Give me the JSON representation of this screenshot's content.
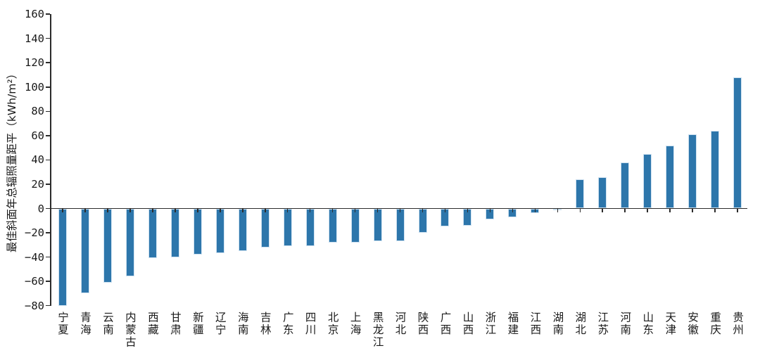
{
  "chart_data": {
    "type": "bar",
    "title": "",
    "xlabel": "",
    "ylabel": "最佳斜面年总辐照量距平（kWh/m²）",
    "ylim": [
      -80,
      160
    ],
    "yticks": [
      160,
      140,
      120,
      100,
      80,
      60,
      40,
      20,
      0,
      -20,
      -40,
      -60,
      -80
    ],
    "grid": false,
    "legend_position": "none",
    "categories": [
      "宁夏",
      "青海",
      "云南",
      "内蒙古",
      "西藏",
      "甘肃",
      "新疆",
      "辽宁",
      "海南",
      "吉林",
      "广东",
      "四川",
      "北京",
      "上海",
      "黑龙江",
      "河北",
      "陕西",
      "广西",
      "山西",
      "浙江",
      "福建",
      "江西",
      "湖南",
      "湖北",
      "江苏",
      "河南",
      "山东",
      "天津",
      "安徽",
      "重庆",
      "贵州"
    ],
    "values": [
      -80,
      -70,
      -61,
      -56,
      -41,
      -40,
      -38,
      -37,
      -35,
      -32,
      -31,
      -31,
      -28,
      -28,
      -27,
      -27,
      -20,
      -15,
      -14,
      -9,
      -7,
      -4,
      -1,
      24,
      26,
      38,
      45,
      52,
      61,
      64,
      108
    ],
    "colors": {
      "bar_fill": "#2d76ab",
      "bar_edge": "#cfe2f1",
      "axis": "#2b2b2b",
      "text": "#1a1a1a"
    }
  }
}
